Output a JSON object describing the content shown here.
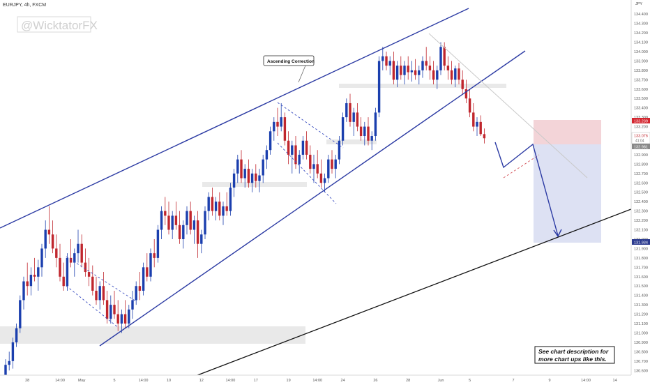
{
  "header": {
    "symbol_text": "EURJPY, 4h, FXCM"
  },
  "watermark": "@WicktatorFX",
  "annotations": {
    "callout": "Ascending Correction",
    "note_line1": "See chart description for",
    "note_line2": "more chart ups like this."
  },
  "price_axis": {
    "currency": "JPY",
    "ticks": [
      "134.500",
      "134.400",
      "134.300",
      "134.200",
      "134.100",
      "134.000",
      "133.900",
      "133.800",
      "133.700",
      "133.600",
      "133.500",
      "133.400",
      "133.300",
      "133.200",
      "133.100",
      "133.000",
      "132.900",
      "132.800",
      "132.700",
      "132.600",
      "132.500",
      "132.400",
      "132.300",
      "132.200",
      "132.100",
      "132.000",
      "131.900",
      "131.800",
      "131.700",
      "131.600",
      "131.500",
      "131.400",
      "131.300",
      "131.200",
      "131.100",
      "131.000",
      "130.900",
      "130.800",
      "130.700",
      "130.600"
    ],
    "badge_stop": "133.239",
    "badge_price": "133.076",
    "badge_countdown": "41:04",
    "badge_entry": "132.981",
    "badge_target": "131.934"
  },
  "time_axis": {
    "labels": [
      {
        "t": 6,
        "label": "28"
      },
      {
        "t": 15,
        "label": "14:00"
      },
      {
        "t": 21,
        "label": "May"
      },
      {
        "t": 30,
        "label": "5"
      },
      {
        "t": 38,
        "label": "14:00"
      },
      {
        "t": 45,
        "label": "10"
      },
      {
        "t": 54,
        "label": "12"
      },
      {
        "t": 62,
        "label": "14:00"
      },
      {
        "t": 69,
        "label": "17"
      },
      {
        "t": 78,
        "label": "19"
      },
      {
        "t": 86,
        "label": "14:00"
      },
      {
        "t": 93,
        "label": "24"
      },
      {
        "t": 102,
        "label": "26"
      },
      {
        "t": 111,
        "label": "28"
      },
      {
        "t": 120,
        "label": "Jun"
      },
      {
        "t": 128,
        "label": "5"
      },
      {
        "t": 140,
        "label": "7"
      },
      {
        "t": 150,
        "label": "9"
      },
      {
        "t": 160,
        "label": "14:00"
      },
      {
        "t": 168,
        "label": "14"
      },
      {
        "t": 178,
        "label": "16"
      },
      {
        "t": 189,
        "label": "14:00"
      }
    ]
  },
  "colors": {
    "up": "#1b3fae",
    "down": "#c0262d",
    "channel": "#2b3aa3",
    "support": "#111111",
    "zone": "#e9e9e9",
    "stop_zone": "#f3d4d8",
    "target_zone": "#dde1f3",
    "projection": "#2b3aa3",
    "badge_stop": "#d3262f",
    "badge_target": "#2b3a8e",
    "badge_neutral": "#888888"
  },
  "chart_data": {
    "type": "candlestick",
    "x_unit": "4h bar index",
    "ylim": [
      130.55,
      134.55
    ],
    "candles": [
      [
        0,
        130.55,
        130.72,
        130.5,
        130.66
      ],
      [
        1,
        130.66,
        130.8,
        130.6,
        130.7
      ],
      [
        2,
        130.7,
        130.95,
        130.62,
        130.9
      ],
      [
        3,
        130.9,
        131.1,
        130.85,
        131.05
      ],
      [
        4,
        131.05,
        131.4,
        131.0,
        131.35
      ],
      [
        5,
        131.35,
        131.6,
        131.25,
        131.55
      ],
      [
        6,
        131.55,
        131.75,
        131.4,
        131.5
      ],
      [
        7,
        131.5,
        131.7,
        131.4,
        131.62
      ],
      [
        8,
        131.62,
        131.8,
        131.55,
        131.6
      ],
      [
        9,
        131.6,
        131.78,
        131.45,
        131.7
      ],
      [
        10,
        131.7,
        131.95,
        131.6,
        131.9
      ],
      [
        11,
        131.9,
        132.2,
        131.8,
        132.1
      ],
      [
        12,
        132.1,
        132.35,
        131.95,
        132.05
      ],
      [
        13,
        132.05,
        132.2,
        131.85,
        131.9
      ],
      [
        14,
        131.9,
        132.05,
        131.7,
        131.8
      ],
      [
        15,
        131.8,
        131.95,
        131.55,
        131.6
      ],
      [
        16,
        131.6,
        131.75,
        131.45,
        131.5
      ],
      [
        17,
        131.5,
        131.85,
        131.45,
        131.8
      ],
      [
        18,
        131.8,
        132.0,
        131.7,
        131.75
      ],
      [
        19,
        131.75,
        131.9,
        131.6,
        131.85
      ],
      [
        20,
        131.85,
        132.1,
        131.75,
        131.95
      ],
      [
        21,
        131.95,
        132.05,
        131.7,
        131.75
      ],
      [
        22,
        131.75,
        131.9,
        131.6,
        131.65
      ],
      [
        23,
        131.65,
        131.8,
        131.5,
        131.6
      ],
      [
        24,
        131.6,
        131.72,
        131.4,
        131.45
      ],
      [
        25,
        131.45,
        131.6,
        131.3,
        131.35
      ],
      [
        26,
        131.35,
        131.55,
        131.25,
        131.5
      ],
      [
        27,
        131.5,
        131.65,
        131.3,
        131.35
      ],
      [
        28,
        131.35,
        131.45,
        131.1,
        131.15
      ],
      [
        29,
        131.15,
        131.4,
        131.1,
        131.3
      ],
      [
        30,
        131.3,
        131.45,
        131.15,
        131.2
      ],
      [
        31,
        131.2,
        131.35,
        131.02,
        131.1
      ],
      [
        32,
        131.1,
        131.25,
        131.0,
        131.2
      ],
      [
        33,
        131.2,
        131.35,
        131.05,
        131.1
      ],
      [
        34,
        131.1,
        131.3,
        131.05,
        131.25
      ],
      [
        35,
        131.25,
        131.45,
        131.15,
        131.35
      ],
      [
        36,
        131.35,
        131.55,
        131.3,
        131.5
      ],
      [
        37,
        131.5,
        131.65,
        131.35,
        131.45
      ],
      [
        38,
        131.45,
        131.75,
        131.4,
        131.7
      ],
      [
        39,
        131.7,
        131.85,
        131.55,
        131.6
      ],
      [
        40,
        131.6,
        131.9,
        131.55,
        131.85
      ],
      [
        41,
        131.85,
        132.0,
        131.7,
        131.8
      ],
      [
        42,
        131.8,
        132.15,
        131.75,
        132.1
      ],
      [
        43,
        132.1,
        132.35,
        132.0,
        132.3
      ],
      [
        44,
        132.3,
        132.45,
        132.15,
        132.25
      ],
      [
        45,
        132.25,
        132.4,
        132.05,
        132.1
      ],
      [
        46,
        132.1,
        132.3,
        132.0,
        132.25
      ],
      [
        47,
        132.25,
        132.4,
        132.1,
        132.15
      ],
      [
        48,
        132.15,
        132.3,
        131.95,
        132.0
      ],
      [
        49,
        132.0,
        132.2,
        131.9,
        132.15
      ],
      [
        50,
        132.15,
        132.35,
        132.05,
        132.3
      ],
      [
        51,
        132.3,
        132.4,
        132.05,
        132.1
      ],
      [
        52,
        132.1,
        132.25,
        131.95,
        132.2
      ],
      [
        53,
        132.2,
        132.3,
        131.8,
        131.95
      ],
      [
        54,
        131.95,
        132.1,
        131.85,
        132.05
      ],
      [
        55,
        132.05,
        132.35,
        132.0,
        132.3
      ],
      [
        56,
        132.3,
        132.5,
        132.2,
        132.45
      ],
      [
        57,
        132.45,
        132.55,
        132.25,
        132.3
      ],
      [
        58,
        132.3,
        132.45,
        132.2,
        132.4
      ],
      [
        59,
        132.4,
        132.5,
        132.2,
        132.25
      ],
      [
        60,
        132.25,
        132.4,
        132.15,
        132.35
      ],
      [
        61,
        132.35,
        132.5,
        132.25,
        132.3
      ],
      [
        62,
        132.3,
        132.6,
        132.25,
        132.55
      ],
      [
        63,
        132.55,
        132.75,
        132.45,
        132.7
      ],
      [
        64,
        132.7,
        132.9,
        132.6,
        132.85
      ],
      [
        65,
        132.85,
        132.95,
        132.6,
        132.65
      ],
      [
        66,
        132.65,
        132.8,
        132.55,
        132.75
      ],
      [
        67,
        132.75,
        132.85,
        132.55,
        132.6
      ],
      [
        68,
        132.6,
        132.75,
        132.5,
        132.7
      ],
      [
        69,
        132.7,
        132.8,
        132.55,
        132.62
      ],
      [
        70,
        132.62,
        132.75,
        132.5,
        132.68
      ],
      [
        71,
        132.68,
        132.9,
        132.6,
        132.85
      ],
      [
        72,
        132.85,
        133.0,
        132.75,
        132.95
      ],
      [
        73,
        132.95,
        133.2,
        132.9,
        133.15
      ],
      [
        74,
        133.15,
        133.3,
        133.05,
        133.25
      ],
      [
        75,
        133.25,
        133.4,
        133.1,
        133.2
      ],
      [
        76,
        133.2,
        133.45,
        133.15,
        133.3
      ],
      [
        77,
        133.3,
        133.35,
        133.0,
        133.05
      ],
      [
        78,
        133.05,
        133.15,
        132.8,
        132.9
      ],
      [
        79,
        132.9,
        133.05,
        132.7,
        133.0
      ],
      [
        80,
        133.0,
        133.1,
        132.75,
        132.8
      ],
      [
        81,
        132.8,
        132.95,
        132.7,
        132.9
      ],
      [
        82,
        132.9,
        133.1,
        132.85,
        133.05
      ],
      [
        83,
        133.05,
        133.15,
        132.85,
        132.9
      ],
      [
        84,
        132.9,
        133.0,
        132.7,
        132.75
      ],
      [
        85,
        132.75,
        132.9,
        132.6,
        132.8
      ],
      [
        86,
        132.8,
        132.95,
        132.65,
        132.7
      ],
      [
        87,
        132.7,
        132.85,
        132.55,
        132.6
      ],
      [
        88,
        132.6,
        132.7,
        132.5,
        132.65
      ],
      [
        89,
        132.65,
        132.9,
        132.6,
        132.85
      ],
      [
        90,
        132.85,
        132.95,
        132.7,
        132.75
      ],
      [
        91,
        132.75,
        132.9,
        132.65,
        132.85
      ],
      [
        92,
        132.85,
        133.1,
        132.8,
        133.05
      ],
      [
        93,
        133.05,
        133.35,
        133.0,
        133.3
      ],
      [
        94,
        133.3,
        133.5,
        133.25,
        133.45
      ],
      [
        95,
        133.45,
        133.55,
        133.2,
        133.25
      ],
      [
        96,
        133.25,
        133.4,
        133.1,
        133.35
      ],
      [
        97,
        133.35,
        133.45,
        133.15,
        133.2
      ],
      [
        98,
        133.2,
        133.3,
        133.05,
        133.1
      ],
      [
        99,
        133.1,
        133.25,
        133.0,
        133.2
      ],
      [
        100,
        133.2,
        133.3,
        133.0,
        133.05
      ],
      [
        101,
        133.05,
        133.15,
        132.95,
        133.1
      ],
      [
        102,
        133.1,
        133.4,
        133.05,
        133.35
      ],
      [
        103,
        133.35,
        133.95,
        133.3,
        133.9
      ],
      [
        104,
        133.9,
        134.05,
        133.8,
        133.95
      ],
      [
        105,
        133.95,
        134.0,
        133.8,
        133.85
      ],
      [
        106,
        133.85,
        133.95,
        133.75,
        133.9
      ],
      [
        107,
        133.9,
        134.0,
        133.65,
        133.7
      ],
      [
        108,
        133.7,
        133.9,
        133.62,
        133.85
      ],
      [
        109,
        133.85,
        133.95,
        133.7,
        133.75
      ],
      [
        110,
        133.75,
        133.9,
        133.65,
        133.85
      ],
      [
        111,
        133.85,
        133.95,
        133.7,
        133.78
      ],
      [
        112,
        133.78,
        133.9,
        133.68,
        133.8
      ],
      [
        113,
        133.8,
        133.92,
        133.7,
        133.75
      ],
      [
        114,
        133.75,
        133.85,
        133.65,
        133.8
      ],
      [
        115,
        133.8,
        133.95,
        133.72,
        133.9
      ],
      [
        116,
        133.9,
        134.05,
        133.8,
        133.85
      ],
      [
        117,
        133.85,
        133.95,
        133.7,
        133.8
      ],
      [
        118,
        133.8,
        133.9,
        133.65,
        133.7
      ],
      [
        119,
        133.7,
        133.85,
        133.6,
        133.8
      ],
      [
        120,
        133.8,
        134.1,
        133.75,
        134.05
      ],
      [
        121,
        134.05,
        134.1,
        133.8,
        133.85
      ],
      [
        122,
        133.85,
        133.95,
        133.7,
        133.8
      ],
      [
        123,
        133.8,
        133.9,
        133.65,
        133.7
      ],
      [
        124,
        133.7,
        133.85,
        133.62,
        133.82
      ],
      [
        125,
        133.82,
        133.88,
        133.65,
        133.7
      ],
      [
        126,
        133.7,
        133.8,
        133.55,
        133.6
      ],
      [
        127,
        133.6,
        133.7,
        133.45,
        133.5
      ],
      [
        128,
        133.5,
        133.6,
        133.3,
        133.35
      ],
      [
        129,
        133.35,
        133.45,
        133.15,
        133.2
      ],
      [
        130,
        133.2,
        133.3,
        133.1,
        133.25
      ],
      [
        131,
        133.25,
        133.32,
        133.1,
        133.12
      ],
      [
        132,
        133.12,
        133.18,
        133.02,
        133.076
      ]
    ]
  }
}
